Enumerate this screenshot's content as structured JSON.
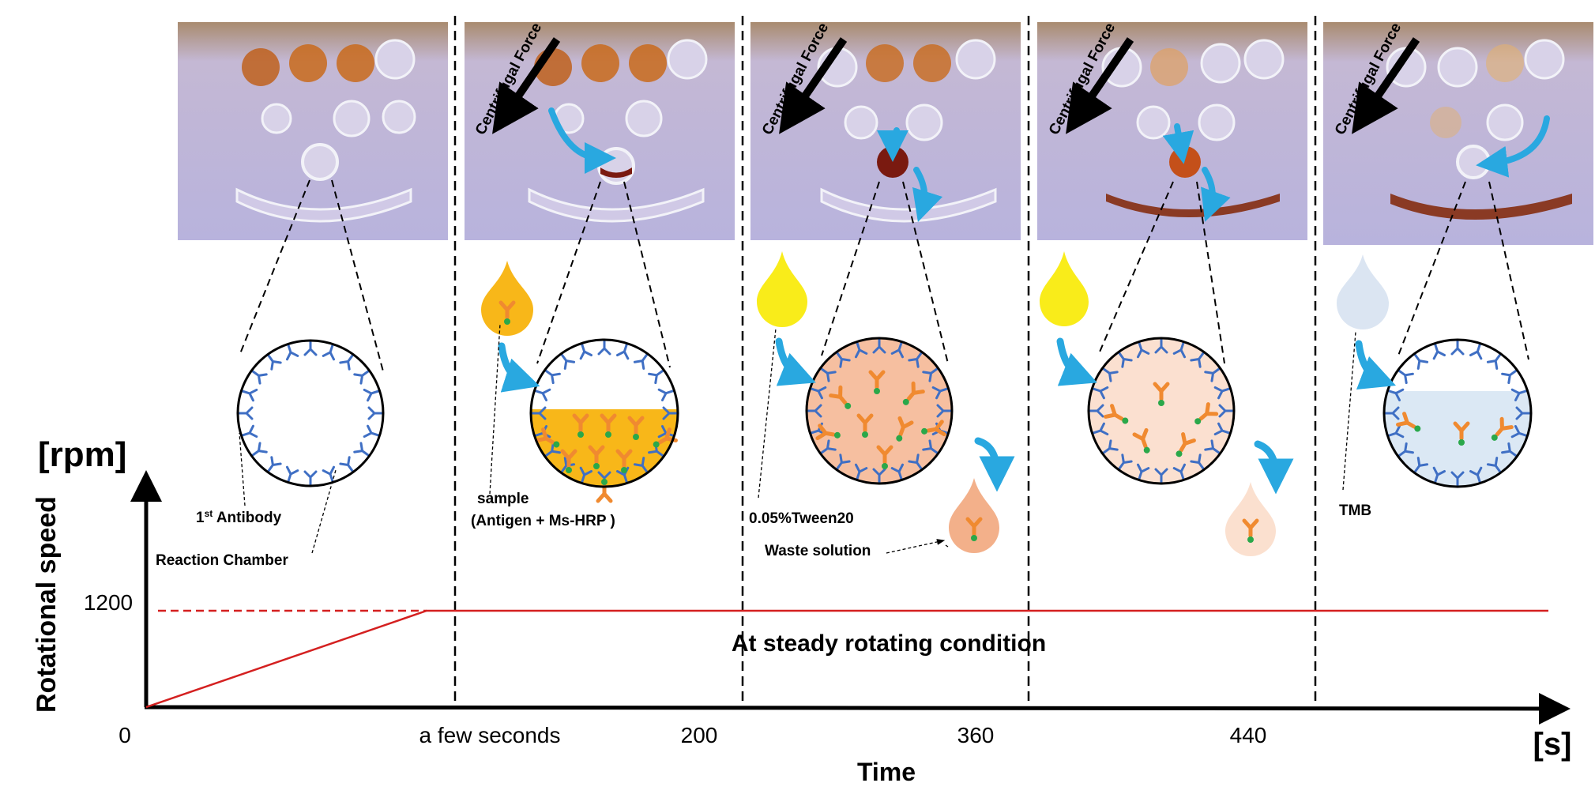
{
  "axes": {
    "y_unit": "[rpm]",
    "y_label": "Rotational speed",
    "x_label": "Time",
    "x_unit": "[s]",
    "y_tick": "1200",
    "x_ticks": [
      "0",
      "a few seconds",
      "200",
      "360",
      "440"
    ]
  },
  "steady_label": "At steady rotating condition",
  "photo_label": "Centrifugal Force",
  "labels": {
    "antibody": "1st Antibody",
    "chamber": "Reaction Chamber",
    "sample_1": "sample",
    "sample_2": "(Antigen + Ms-HRP )",
    "tween": "0.05%Tween20",
    "waste": "Waste solution",
    "tmb": "TMB"
  },
  "colors": {
    "speed_line": "#d42020",
    "arrow": "#29a8e0",
    "antibody": "#3f6fc4",
    "antigen": "#f08a30",
    "marker": "#2aa84a",
    "sample_fill": "#f8b719",
    "wash_drop": "#f9ec1a",
    "tmb_drop": "#dbe5f2"
  }
}
